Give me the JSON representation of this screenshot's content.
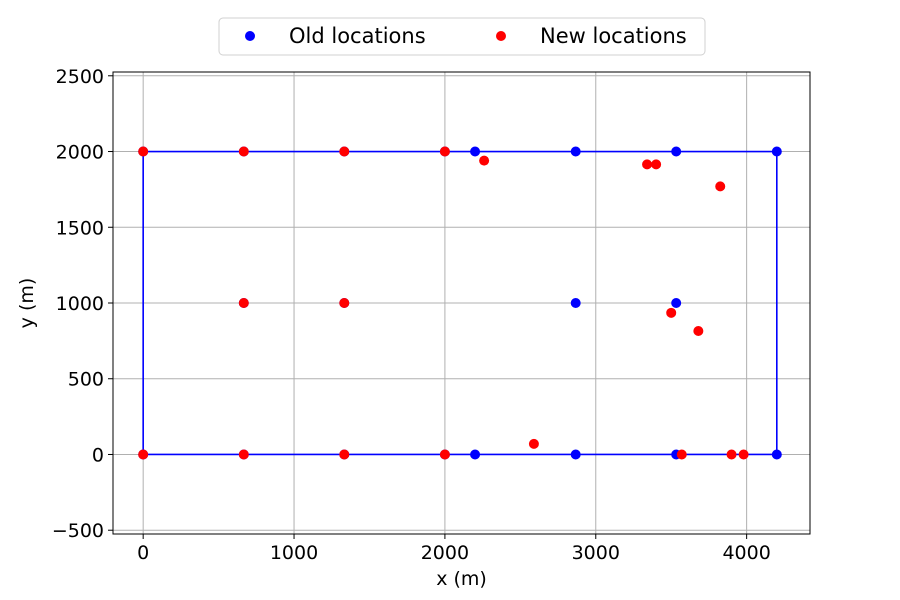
{
  "chart_data": {
    "type": "scatter",
    "xlabel": "x (m)",
    "ylabel": "y (m)",
    "xlim": [
      -200,
      4420
    ],
    "ylim": [
      -525,
      2525
    ],
    "xticks": [
      0,
      1000,
      2000,
      3000,
      4000
    ],
    "yticks": [
      -500,
      0,
      500,
      1000,
      1500,
      2000,
      2500
    ],
    "grid": true,
    "legend_position": "top-center",
    "boundary": {
      "color": "#0000ff",
      "x": [
        0,
        4200,
        4200,
        0,
        0
      ],
      "y": [
        0,
        0,
        2000,
        2000,
        0
      ]
    },
    "series": [
      {
        "name": "Old locations",
        "color": "#0000ff",
        "points": [
          [
            0,
            2000
          ],
          [
            667,
            2000
          ],
          [
            1333,
            2000
          ],
          [
            2000,
            2000
          ],
          [
            2200,
            2000
          ],
          [
            2867,
            2000
          ],
          [
            3533,
            2000
          ],
          [
            4200,
            2000
          ],
          [
            667,
            1000
          ],
          [
            1333,
            1000
          ],
          [
            2867,
            1000
          ],
          [
            3533,
            1000
          ],
          [
            0,
            0
          ],
          [
            667,
            0
          ],
          [
            1333,
            0
          ],
          [
            2000,
            0
          ],
          [
            2200,
            0
          ],
          [
            2867,
            0
          ],
          [
            3533,
            0
          ],
          [
            4200,
            0
          ]
        ]
      },
      {
        "name": "New locations",
        "color": "#ff0000",
        "points": [
          [
            0,
            2000
          ],
          [
            667,
            2000
          ],
          [
            1333,
            2000
          ],
          [
            2000,
            2000
          ],
          [
            2260,
            1940
          ],
          [
            3340,
            1915
          ],
          [
            3400,
            1915
          ],
          [
            3825,
            1770
          ],
          [
            667,
            1000
          ],
          [
            1333,
            1000
          ],
          [
            3500,
            935
          ],
          [
            3680,
            815
          ],
          [
            2590,
            70
          ],
          [
            0,
            0
          ],
          [
            667,
            0
          ],
          [
            1333,
            0
          ],
          [
            2000,
            0
          ],
          [
            3570,
            0
          ],
          [
            3900,
            0
          ],
          [
            3980,
            0
          ]
        ]
      }
    ]
  }
}
